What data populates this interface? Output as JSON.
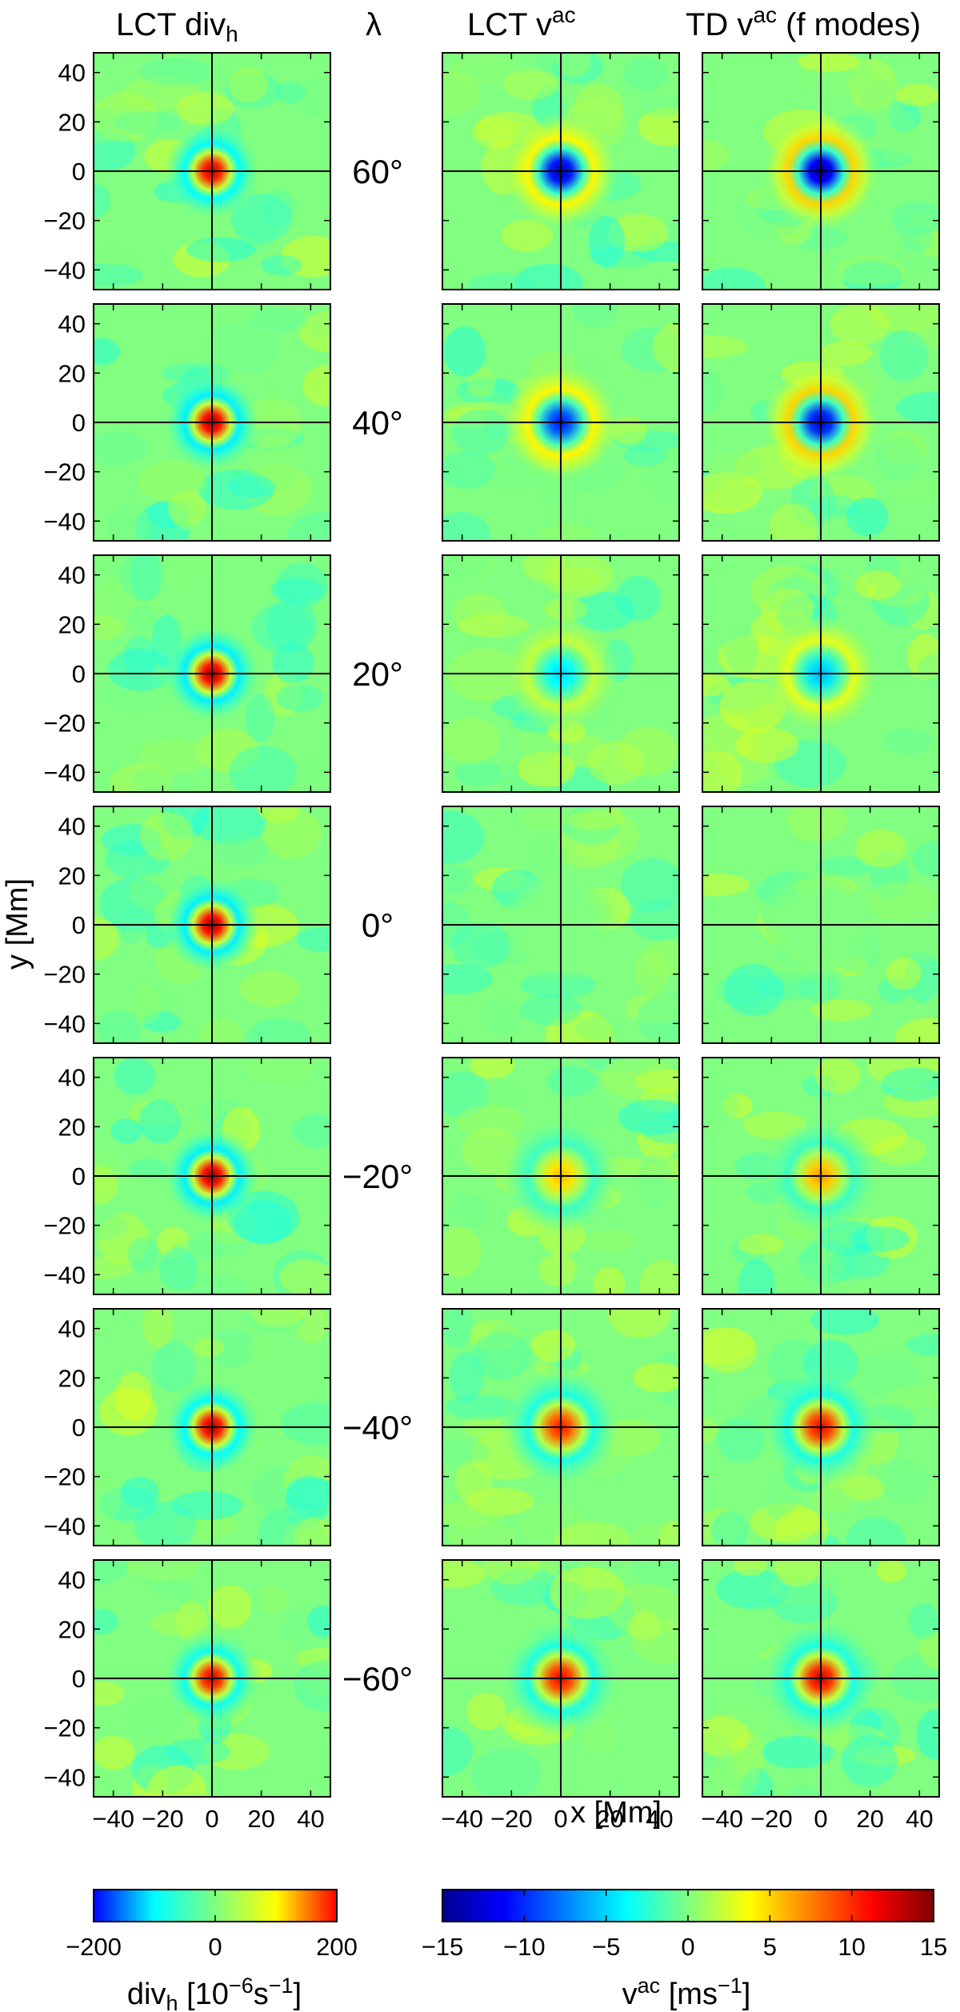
{
  "figure": {
    "column_titles": [
      {
        "main": "LCT div",
        "sub": "h",
        "sup": ""
      },
      {
        "main": "λ",
        "sub": "",
        "sup": ""
      },
      {
        "main": "LCT v",
        "sub": "",
        "sup": "ac"
      },
      {
        "main": "TD v",
        "sub": "",
        "sup": "ac",
        "tail": " (f modes)"
      }
    ],
    "ylabel": "y [Mm]",
    "xlabel": "x [Mm]",
    "y_ticks": [
      "40",
      "20",
      "0",
      "−20",
      "−40"
    ],
    "x_ticks": [
      "−40",
      "−20",
      "0",
      "20",
      "40"
    ],
    "latitude_labels": [
      "60°",
      "40°",
      "20°",
      "0°",
      "−20°",
      "−40°",
      "−60°"
    ],
    "colorbars": [
      {
        "ticks": [
          "−200",
          "0",
          "200"
        ],
        "label_main": "div",
        "label_sub": "h",
        "label_rest": " [10",
        "label_exp1": "−6",
        "label_mid": "s",
        "label_exp2": "−1",
        "label_end": "]",
        "colormap": "jet"
      },
      {
        "ticks": [
          "−15",
          "−10",
          "−5",
          "0",
          "5",
          "10",
          "15"
        ],
        "label_main": "v",
        "label_sup": "ac",
        "label_rest": " [ms",
        "label_exp": "−1",
        "label_end": "]",
        "colormap": "jet"
      }
    ]
  },
  "chart_data": [
    {
      "type": "heatmap",
      "title": "LCT divh",
      "xlim": [
        -48,
        48
      ],
      "ylim": [
        -48,
        48
      ],
      "colorbar_range": [
        -200,
        200
      ],
      "rows": [
        {
          "latitude": 60,
          "center_value": 180,
          "ring_value": -50
        },
        {
          "latitude": 40,
          "center_value": 190,
          "ring_value": -55
        },
        {
          "latitude": 20,
          "center_value": 190,
          "ring_value": -55
        },
        {
          "latitude": 0,
          "center_value": 190,
          "ring_value": -55
        },
        {
          "latitude": -20,
          "center_value": 190,
          "ring_value": -55
        },
        {
          "latitude": -40,
          "center_value": 185,
          "ring_value": -50
        },
        {
          "latitude": -60,
          "center_value": 170,
          "ring_value": -45
        }
      ]
    },
    {
      "type": "heatmap",
      "title": "LCT vac",
      "xlim": [
        -48,
        48
      ],
      "ylim": [
        -48,
        48
      ],
      "colorbar_range": [
        -15,
        15
      ],
      "rows": [
        {
          "latitude": 60,
          "center_value": -14,
          "ring_value": 4
        },
        {
          "latitude": 40,
          "center_value": -11,
          "ring_value": 4
        },
        {
          "latitude": 20,
          "center_value": -5,
          "ring_value": 2
        },
        {
          "latitude": 0,
          "center_value": 0,
          "ring_value": 0
        },
        {
          "latitude": -20,
          "center_value": 6,
          "ring_value": -2
        },
        {
          "latitude": -40,
          "center_value": 11,
          "ring_value": -3
        },
        {
          "latitude": -60,
          "center_value": 12,
          "ring_value": -3
        }
      ]
    },
    {
      "type": "heatmap",
      "title": "TD vac (f modes)",
      "xlim": [
        -48,
        48
      ],
      "ylim": [
        -48,
        48
      ],
      "colorbar_range": [
        -15,
        15
      ],
      "rows": [
        {
          "latitude": 60,
          "center_value": -15,
          "ring_value": 5
        },
        {
          "latitude": 40,
          "center_value": -13,
          "ring_value": 5
        },
        {
          "latitude": 20,
          "center_value": -6,
          "ring_value": 3
        },
        {
          "latitude": 0,
          "center_value": 0,
          "ring_value": 0
        },
        {
          "latitude": -20,
          "center_value": 7,
          "ring_value": -2
        },
        {
          "latitude": -40,
          "center_value": 12,
          "ring_value": -3
        },
        {
          "latitude": -60,
          "center_value": 13,
          "ring_value": -3
        }
      ]
    }
  ],
  "colors": {
    "background_field": "#93f7a3",
    "crosshair": "#000000"
  }
}
